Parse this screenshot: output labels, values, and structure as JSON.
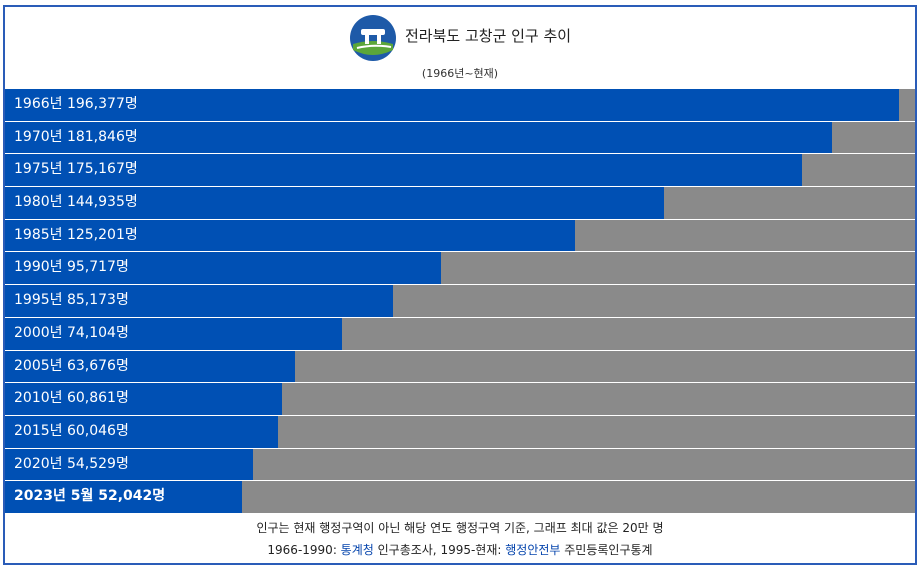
{
  "header": {
    "title": "전라북도 고창군 인구 추이",
    "subtitle": "(1966년~현재)",
    "logo_icon": "gochang-dolmen-logo-icon"
  },
  "chart_data": {
    "type": "bar",
    "orientation": "horizontal",
    "xlim": [
      0,
      200000
    ],
    "categories": [
      "1966년",
      "1970년",
      "1975년",
      "1980년",
      "1985년",
      "1990년",
      "1995년",
      "2000년",
      "2005년",
      "2010년",
      "2015년",
      "2020년",
      "2023년 5월"
    ],
    "values": [
      196377,
      181846,
      175167,
      144935,
      125201,
      95717,
      85173,
      74104,
      63676,
      60861,
      60046,
      54529,
      52042
    ],
    "labels": [
      "1966년 196,377명",
      "1970년 181,846명",
      "1975년 175,167명",
      "1980년 144,935명",
      "1985년 125,201명",
      "1990년 95,717명",
      "1995년 85,173명",
      "2000년 74,104명",
      "2005년 63,676명",
      "2010년 60,861명",
      "2015년 60,046명",
      "2020년 54,529명",
      "2023년 5월 52,042명"
    ],
    "colors": {
      "bar": "#0050b4",
      "track": "#8a8a8a"
    }
  },
  "footer": {
    "note": "인구는 현재 행정구역이 아닌 해당 연도 행정구역 기준, 그래프 최대 값은 20만 명",
    "src_prefix": "1966-1990: ",
    "src_link1": "통계청",
    "src_mid": " 인구총조사, 1995-현재: ",
    "src_link2": "행정안전부",
    "src_suffix": " 주민등록인구통계"
  }
}
